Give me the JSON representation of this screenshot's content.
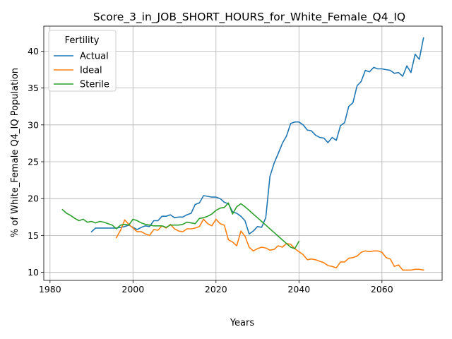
{
  "chart_data": {
    "type": "line",
    "title": "Score_3_in_JOB_SHORT_HOURS_for_White_Female_Q4_IQ",
    "xlabel": "Years",
    "ylabel": "% of White_Female Q4_IQ Population",
    "xlim": [
      1978.5,
      2074.5
    ],
    "ylim": [
      8.9,
      43.4
    ],
    "xticks": [
      1980,
      2000,
      2020,
      2040,
      2060
    ],
    "yticks": [
      10,
      15,
      20,
      25,
      30,
      35,
      40
    ],
    "grid": true,
    "legend": {
      "title": "Fertility",
      "placement": "top-left"
    },
    "series": [
      {
        "name": "Actual",
        "color": "#1f77b4",
        "x": [
          1990,
          1991,
          1992,
          1993,
          1994,
          1995,
          1996,
          1997,
          1998,
          1999,
          2000,
          2001,
          2002,
          2003,
          2004,
          2005,
          2006,
          2007,
          2008,
          2009,
          2010,
          2011,
          2012,
          2013,
          2014,
          2015,
          2016,
          2017,
          2018,
          2019,
          2020,
          2021,
          2022,
          2023,
          2024,
          2025,
          2026,
          2027,
          2028,
          2029,
          2030,
          2031,
          2032,
          2033,
          2034,
          2035,
          2036,
          2037,
          2038,
          2039,
          2040,
          2041,
          2042,
          2043,
          2044,
          2045,
          2046,
          2047,
          2048,
          2049,
          2050,
          2051,
          2052,
          2053,
          2054,
          2055,
          2056,
          2057,
          2058,
          2059,
          2060,
          2061,
          2062,
          2063,
          2064,
          2065,
          2066,
          2067,
          2068,
          2069,
          2070
        ],
        "values": [
          15.5,
          16.0,
          16.0,
          16.0,
          16.0,
          16.0,
          16.0,
          16.1,
          16.2,
          16.4,
          16.1,
          15.8,
          16.1,
          16.3,
          16.2,
          17.0,
          17.0,
          17.6,
          17.6,
          17.8,
          17.4,
          17.5,
          17.5,
          17.8,
          18.0,
          19.2,
          19.4,
          20.4,
          20.3,
          20.2,
          20.2,
          20.0,
          19.5,
          19.3,
          18.2,
          18.0,
          17.6,
          17.0,
          15.2,
          15.6,
          16.2,
          16.1,
          17.4,
          23.0,
          24.8,
          26.1,
          27.5,
          28.5,
          30.2,
          30.4,
          30.4,
          30.0,
          29.3,
          29.2,
          28.6,
          28.3,
          28.2,
          27.6,
          28.3,
          27.9,
          29.9,
          30.3,
          32.5,
          33.0,
          35.3,
          35.9,
          37.4,
          37.2,
          37.8,
          37.6,
          37.6,
          37.5,
          37.4,
          37.0,
          37.1,
          36.6,
          38.0,
          37.1,
          39.6,
          38.9,
          41.8
        ]
      },
      {
        "name": "Ideal",
        "color": "#ff7f0e",
        "x": [
          1996,
          1997,
          1998,
          1999,
          2000,
          2001,
          2002,
          2003,
          2004,
          2005,
          2006,
          2007,
          2008,
          2009,
          2010,
          2011,
          2012,
          2013,
          2014,
          2015,
          2016,
          2017,
          2018,
          2019,
          2020,
          2021,
          2022,
          2023,
          2024,
          2025,
          2026,
          2027,
          2028,
          2029,
          2030,
          2031,
          2032,
          2033,
          2034,
          2035,
          2036,
          2037,
          2038,
          2039,
          2040,
          2041,
          2042,
          2043,
          2044,
          2045,
          2046,
          2047,
          2048,
          2049,
          2050,
          2051,
          2052,
          2053,
          2054,
          2055,
          2056,
          2057,
          2058,
          2059,
          2060,
          2061,
          2062,
          2063,
          2064,
          2065,
          2066,
          2067,
          2068,
          2069,
          2070
        ],
        "values": [
          14.7,
          15.7,
          17.1,
          16.5,
          16.0,
          15.5,
          15.5,
          15.2,
          15.0,
          15.8,
          15.7,
          16.3,
          16.0,
          16.5,
          15.9,
          15.6,
          15.5,
          15.9,
          15.9,
          16.0,
          16.2,
          17.2,
          16.6,
          16.3,
          17.2,
          16.6,
          16.4,
          14.4,
          14.1,
          13.6,
          15.6,
          14.9,
          13.4,
          12.9,
          13.2,
          13.4,
          13.3,
          13.0,
          13.1,
          13.6,
          13.4,
          13.9,
          13.8,
          13.2,
          12.8,
          12.4,
          11.7,
          11.8,
          11.7,
          11.5,
          11.3,
          10.9,
          10.8,
          10.6,
          11.4,
          11.4,
          11.9,
          12.0,
          12.2,
          12.7,
          12.9,
          12.8,
          12.9,
          12.9,
          12.7,
          12.0,
          11.8,
          10.8,
          11.0,
          10.3,
          10.3,
          10.3,
          10.4,
          10.4,
          10.3
        ]
      },
      {
        "name": "Sterile",
        "color": "#2ca02c",
        "x": [
          1983,
          1984,
          1985,
          1986,
          1987,
          1988,
          1989,
          1990,
          1991,
          1992,
          1993,
          1994,
          1995,
          1996,
          1997,
          1998,
          1999,
          2000,
          2001,
          2002,
          2003,
          2004,
          2005,
          2006,
          2007,
          2008,
          2009,
          2010,
          2011,
          2012,
          2013,
          2014,
          2015,
          2016,
          2017,
          2018,
          2019,
          2020,
          2021,
          2022,
          2023,
          2024,
          2025,
          2026,
          2027,
          2028,
          2029,
          2030,
          2031,
          2032,
          2033,
          2034,
          2035,
          2036,
          2037,
          2038,
          2039,
          2040
        ],
        "values": [
          18.5,
          18.0,
          17.7,
          17.3,
          17.0,
          17.2,
          16.8,
          16.9,
          16.7,
          16.9,
          16.8,
          16.6,
          16.4,
          15.9,
          16.4,
          16.5,
          16.4,
          17.2,
          17.0,
          16.7,
          16.5,
          16.4,
          16.3,
          16.3,
          16.3,
          16.1,
          16.4,
          16.4,
          16.4,
          16.5,
          16.8,
          16.7,
          16.6,
          17.3,
          17.4,
          17.6,
          17.9,
          18.4,
          18.7,
          18.8,
          19.4,
          17.9,
          18.9,
          19.3,
          18.9,
          18.4,
          17.9,
          17.4,
          16.9,
          16.4,
          15.9,
          15.4,
          14.9,
          14.4,
          13.9,
          13.4,
          13.2,
          14.2
        ]
      }
    ]
  }
}
